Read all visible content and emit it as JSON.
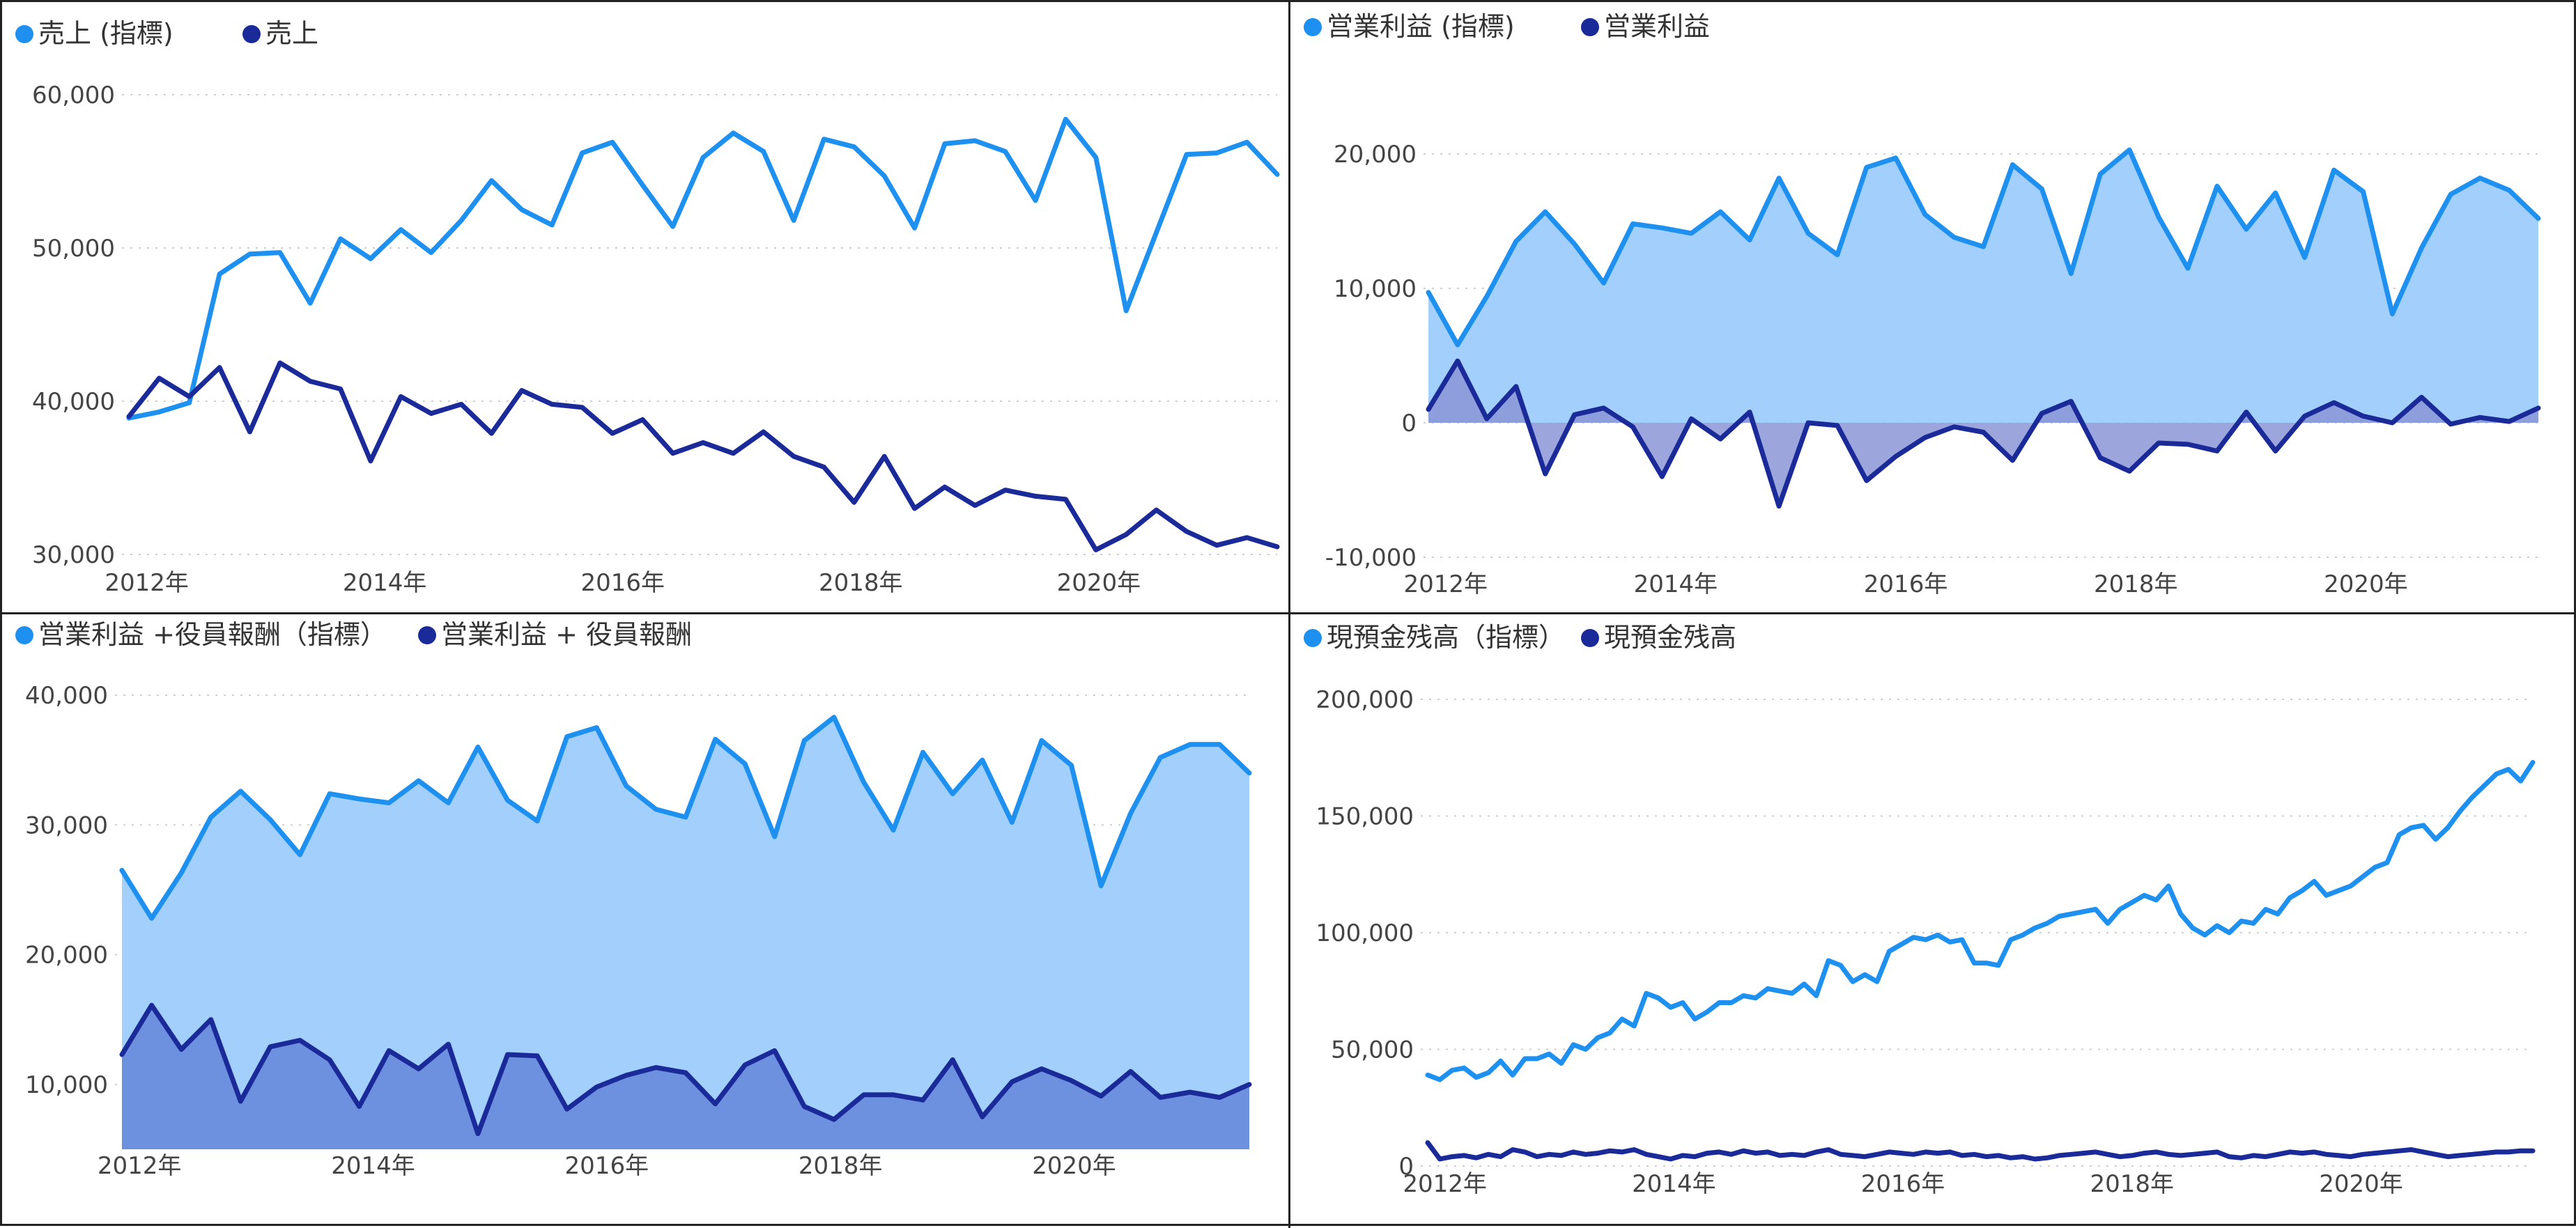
{
  "chart_data": [
    {
      "type": "line",
      "x_labels": [
        "2012年",
        "2014年",
        "2016年",
        "2018年",
        "2020年"
      ],
      "x_label_positions": [
        2012,
        2014,
        2016,
        2018,
        2020
      ],
      "ylim": [
        30000,
        60000
      ],
      "yticks": [
        30000,
        40000,
        50000,
        60000
      ],
      "ytick_labels": [
        "30,000",
        "40,000",
        "50,000",
        "60,000"
      ],
      "grid": true,
      "legend_position": "top-left",
      "series": [
        {
          "name": "売上 (指標)",
          "color": "#1e90f0",
          "fill": false,
          "values": [
            38900,
            39300,
            39900,
            48300,
            49600,
            49700,
            46400,
            50600,
            49300,
            51200,
            49700,
            51800,
            54400,
            52500,
            51500,
            56200,
            56900,
            54100,
            51400,
            55900,
            57500,
            56300,
            51800,
            57100,
            56600,
            54700,
            51300,
            56800,
            57000,
            56300,
            53100,
            58400,
            55900,
            45900,
            51000,
            56100,
            56200,
            56900,
            54800
          ]
        },
        {
          "name": "売上",
          "color": "#1a2a99",
          "fill": false,
          "values": [
            39000,
            41500,
            40300,
            42200,
            38000,
            42500,
            41300,
            40800,
            36100,
            40300,
            39200,
            39800,
            37900,
            40700,
            39800,
            39600,
            37900,
            38800,
            36600,
            37300,
            36600,
            38000,
            36400,
            35700,
            33400,
            36400,
            33000,
            34400,
            33200,
            34200,
            33800,
            33600,
            30300,
            31300,
            32900,
            31500,
            30600,
            31100,
            30500
          ]
        }
      ]
    },
    {
      "type": "area",
      "x_labels": [
        "2012年",
        "2014年",
        "2016年",
        "2018年",
        "2020年"
      ],
      "x_label_positions": [
        2012,
        2014,
        2016,
        2018,
        2020
      ],
      "ylim": [
        -10000,
        20000
      ],
      "yticks": [
        -10000,
        0,
        10000,
        20000
      ],
      "ytick_labels": [
        "-10,000",
        "0",
        "10,000",
        "20,000"
      ],
      "grid": true,
      "legend_position": "top-left",
      "series": [
        {
          "name": "営業利益 (指標)",
          "color": "#1e90f0",
          "fill": true,
          "values": [
            9700,
            5800,
            9400,
            13500,
            15700,
            13300,
            10400,
            14800,
            14500,
            14100,
            15700,
            13600,
            18200,
            14100,
            12500,
            19000,
            19700,
            15500,
            13800,
            13100,
            19200,
            17400,
            11100,
            18500,
            20300,
            15300,
            11500,
            17600,
            14400,
            17100,
            12300,
            18800,
            17200,
            8100,
            13000,
            17000,
            18200,
            17300,
            15200
          ]
        },
        {
          "name": "営業利益",
          "color": "#1a2a99",
          "fill": true,
          "values": [
            1000,
            4600,
            300,
            2700,
            -3800,
            600,
            1100,
            -300,
            -4000,
            300,
            -1200,
            800,
            -6200,
            0,
            -200,
            -4300,
            -2500,
            -1100,
            -300,
            -700,
            -2800,
            700,
            1600,
            -2600,
            -3600,
            -1500,
            -1600,
            -2100,
            800,
            -2100,
            500,
            1500,
            500,
            0,
            1900,
            -100,
            400,
            100,
            1100
          ]
        }
      ]
    },
    {
      "type": "area",
      "x_labels": [
        "2012年",
        "2014年",
        "2016年",
        "2018年",
        "2020年"
      ],
      "x_label_positions": [
        2012,
        2014,
        2016,
        2018,
        2020
      ],
      "ylim": [
        5000,
        40000
      ],
      "yticks": [
        10000,
        20000,
        30000,
        40000
      ],
      "ytick_labels": [
        "10,000",
        "20,000",
        "30,000",
        "40,000"
      ],
      "grid": true,
      "legend_position": "top-left",
      "series": [
        {
          "name": "営業利益 +役員報酬（指標）",
          "color": "#1e90f0",
          "fill": true,
          "values": [
            26500,
            22800,
            26300,
            30600,
            32600,
            30400,
            27700,
            32400,
            32000,
            31700,
            33400,
            31700,
            36000,
            31900,
            30300,
            36800,
            37500,
            33000,
            31200,
            30600,
            36600,
            34700,
            29100,
            36500,
            38300,
            33300,
            29600,
            35600,
            32400,
            35000,
            30200,
            36500,
            34600,
            25300,
            30900,
            35200,
            36200,
            36200,
            34000
          ]
        },
        {
          "name": "営業利益 + 役員報酬",
          "color": "#1a2a99",
          "fill": true,
          "values": [
            12300,
            16100,
            12700,
            15000,
            8700,
            12900,
            13400,
            11900,
            8300,
            12600,
            11200,
            13100,
            6200,
            12300,
            12200,
            8100,
            9800,
            10700,
            11300,
            10900,
            8500,
            11500,
            12600,
            8300,
            7300,
            9200,
            9200,
            8800,
            11900,
            7500,
            10200,
            11200,
            10300,
            9100,
            11000,
            9000,
            9400,
            9000,
            10000
          ]
        }
      ]
    },
    {
      "type": "line",
      "x_labels": [
        "2012年",
        "2014年",
        "2016年",
        "2018年",
        "2020年"
      ],
      "x_label_positions": [
        2012,
        2014,
        2016,
        2018,
        2020
      ],
      "ylim": [
        0,
        200000
      ],
      "yticks": [
        0,
        50000,
        100000,
        150000,
        200000
      ],
      "ytick_labels": [
        "0",
        "50,000",
        "100,000",
        "150,000",
        "200,000"
      ],
      "grid": true,
      "legend_position": "top-left",
      "series": [
        {
          "name": "現預金残高（指標）",
          "color": "#1e90f0",
          "fill": false,
          "values": [
            39000,
            37000,
            41000,
            42000,
            38000,
            40000,
            45000,
            39000,
            46000,
            46000,
            48000,
            44000,
            52000,
            50000,
            55000,
            57000,
            63000,
            60000,
            74000,
            72000,
            68000,
            70000,
            63000,
            66000,
            70000,
            70000,
            73000,
            72000,
            76000,
            75000,
            74000,
            78000,
            73000,
            88000,
            86000,
            79000,
            82000,
            79000,
            92000,
            95000,
            98000,
            97000,
            99000,
            96000,
            97000,
            87000,
            87000,
            86000,
            97000,
            99000,
            102000,
            104000,
            107000,
            108000,
            109000,
            110000,
            104000,
            110000,
            113000,
            116000,
            114000,
            120000,
            108000,
            102000,
            99000,
            103000,
            100000,
            105000,
            104000,
            110000,
            108000,
            115000,
            118000,
            122000,
            116000,
            118000,
            120000,
            124000,
            128000,
            130000,
            142000,
            145000,
            146000,
            140000,
            145000,
            152000,
            158000,
            163000,
            168000,
            170000,
            165000,
            173000
          ]
        },
        {
          "name": "現預金残高",
          "color": "#1a2a99",
          "fill": false,
          "values": [
            10000,
            3000,
            4000,
            4500,
            3500,
            5000,
            4000,
            7000,
            6000,
            4000,
            5000,
            4500,
            6000,
            5000,
            5500,
            6500,
            6000,
            7000,
            5000,
            4000,
            3000,
            4500,
            4000,
            5500,
            6000,
            5000,
            6500,
            5500,
            6000,
            4500,
            5000,
            4500,
            6000,
            7000,
            5000,
            4500,
            4000,
            5000,
            6000,
            5500,
            5000,
            6000,
            5500,
            6000,
            4500,
            5000,
            4000,
            4500,
            3500,
            4000,
            3000,
            3500,
            4500,
            5000,
            5500,
            6000,
            5000,
            4000,
            4500,
            5500,
            6000,
            5000,
            4500,
            5000,
            5500,
            6000,
            4000,
            3500,
            4500,
            4000,
            5000,
            6000,
            5500,
            6000,
            5000,
            4500,
            4000,
            5000,
            5500,
            6000,
            6500,
            7000,
            6000,
            5000,
            4000,
            4500,
            5000,
            5500,
            6000,
            6000,
            6500,
            6500
          ]
        }
      ]
    }
  ]
}
